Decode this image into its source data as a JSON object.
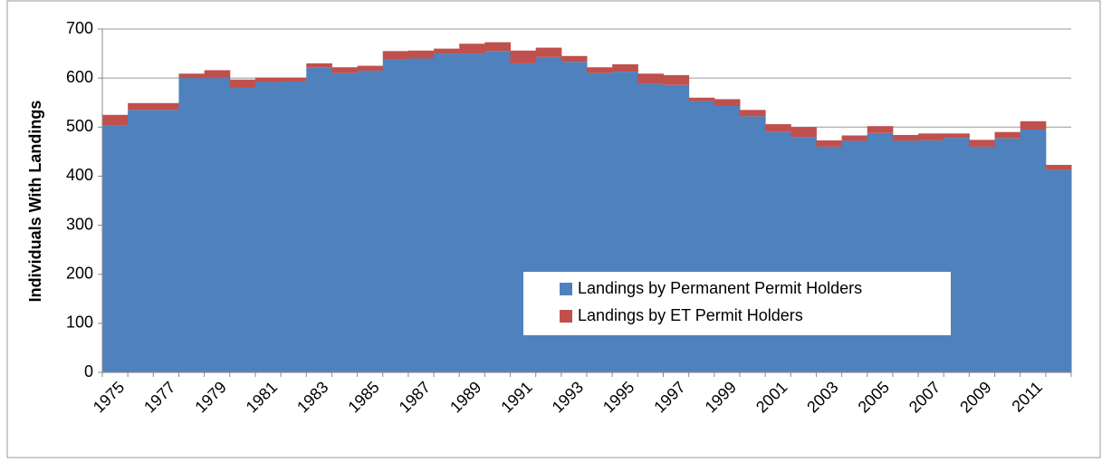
{
  "chart_data": {
    "type": "stacked-bar",
    "y_label": "Individuals With Landings",
    "categories": [
      "1975",
      null,
      "1977",
      null,
      "1979",
      null,
      "1981",
      null,
      "1983",
      null,
      "1985",
      null,
      "1987",
      null,
      "1989",
      null,
      "1991",
      null,
      "1993",
      null,
      "1995",
      null,
      "1997",
      null,
      "1999",
      null,
      "2001",
      null,
      "2003",
      null,
      "2005",
      null,
      "2007",
      null,
      "2009",
      null,
      "2011",
      null
    ],
    "series": [
      {
        "name": "Landings by Permanent Permit Holders",
        "color": "#4f81bd",
        "values": [
          503,
          535,
          535,
          600,
          600,
          580,
          592,
          593,
          622,
          610,
          615,
          638,
          640,
          650,
          650,
          655,
          630,
          643,
          633,
          610,
          613,
          588,
          586,
          553,
          543,
          522,
          490,
          480,
          460,
          472,
          488,
          472,
          473,
          478,
          460,
          477,
          495,
          413
        ]
      },
      {
        "name": "Landings by ET Permit Holders",
        "color": "#c0504d",
        "values": [
          22,
          14,
          14,
          9,
          16,
          17,
          9,
          8,
          8,
          12,
          10,
          17,
          16,
          10,
          20,
          18,
          26,
          19,
          12,
          12,
          15,
          21,
          20,
          7,
          14,
          13,
          16,
          20,
          13,
          11,
          14,
          12,
          14,
          9,
          14,
          13,
          17,
          10
        ]
      }
    ],
    "ylim": [
      0,
      700
    ],
    "yticks": [
      0,
      100,
      200,
      300,
      400,
      500,
      600,
      700
    ],
    "grid": true
  }
}
